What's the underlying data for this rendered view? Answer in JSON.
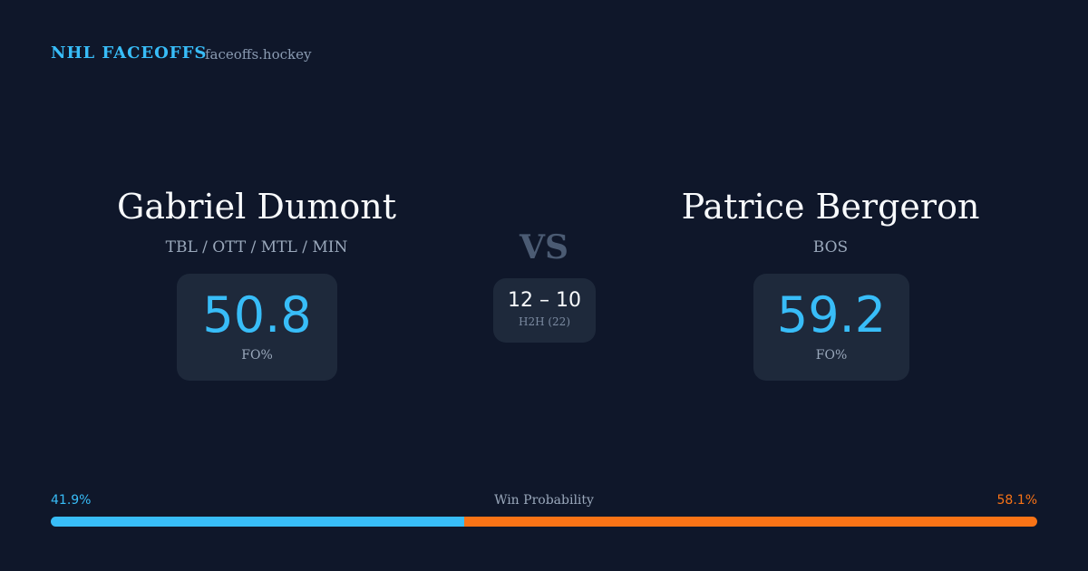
{
  "header": {
    "brand": "NHL FACEOFFS",
    "site": "faceoffs.hockey"
  },
  "players": [
    {
      "name": "Gabriel Dumont",
      "teams": "TBL / OTT / MTL / MIN",
      "fo": "50.8",
      "fo_label": "FO%"
    },
    {
      "name": "Patrice Bergeron",
      "teams": "BOS",
      "fo": "59.2",
      "fo_label": "FO%"
    }
  ],
  "vs": "VS",
  "h2h": {
    "score": "12 – 10",
    "label": "H2H (22)"
  },
  "win_probability": {
    "label": "Win Probability",
    "values": [
      41.9,
      58.1
    ],
    "value_labels": [
      "41.9%",
      "58.1%"
    ],
    "colors": [
      "#38bdf8",
      "#f97316"
    ]
  }
}
